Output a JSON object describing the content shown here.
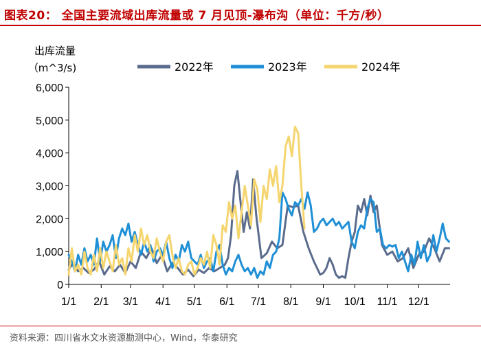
{
  "title": "图表20：  全国主要流域出库流量或 7 月见顶-瀑布沟（单位：千方/秒）",
  "source": "资料来源：四川省水文水资源勘测中心，Wind，华泰研究",
  "chart_data": {
    "type": "line",
    "ylabel_line1": "出库流量",
    "ylabel_line2": "（m^3/s)",
    "ylim": [
      0,
      6000
    ],
    "xlim": [
      1,
      365
    ],
    "y_ticks": [
      0,
      1000,
      2000,
      3000,
      4000,
      5000,
      6000
    ],
    "y_tick_labels": [
      "0",
      "1,000",
      "2,000",
      "3,000",
      "4,000",
      "5,000",
      "6,000"
    ],
    "x_ticks": [
      1,
      32,
      60,
      91,
      121,
      152,
      182,
      213,
      244,
      274,
      305,
      335
    ],
    "x_tick_labels": [
      "1/1",
      "2/1",
      "3/1",
      "4/1",
      "5/1",
      "6/1",
      "7/1",
      "8/1",
      "9/1",
      "10/1",
      "11/1",
      "12/1"
    ],
    "x_unit": "day of year",
    "legend_position": "top",
    "series": [
      {
        "name": "2022年",
        "color": "#5a6b8c",
        "x": [
          1,
          5,
          10,
          15,
          20,
          25,
          30,
          35,
          40,
          45,
          50,
          55,
          60,
          65,
          70,
          75,
          80,
          85,
          90,
          95,
          100,
          105,
          110,
          115,
          120,
          125,
          130,
          135,
          140,
          145,
          150,
          153,
          156,
          159,
          162,
          165,
          168,
          171,
          174,
          177,
          180,
          185,
          190,
          195,
          200,
          205,
          210,
          215,
          220,
          225,
          230,
          235,
          238,
          241,
          244,
          247,
          250,
          253,
          256,
          259,
          262,
          265,
          268,
          271,
          274,
          277,
          280,
          283,
          286,
          289,
          292,
          295,
          300,
          305,
          310,
          315,
          320,
          325,
          330,
          335,
          340,
          345,
          350,
          355,
          360,
          364
        ],
        "y": [
          450,
          650,
          400,
          500,
          350,
          450,
          700,
          300,
          550,
          400,
          600,
          350,
          700,
          500,
          1000,
          800,
          1100,
          650,
          900,
          400,
          650,
          500,
          300,
          450,
          250,
          450,
          350,
          500,
          400,
          500,
          600,
          800,
          1500,
          3000,
          3450,
          2500,
          1600,
          2200,
          1700,
          3200,
          2100,
          800,
          950,
          1300,
          1100,
          1200,
          2400,
          2350,
          2400,
          1600,
          1100,
          700,
          500,
          300,
          350,
          500,
          800,
          600,
          300,
          200,
          250,
          200,
          800,
          1300,
          1600,
          2400,
          2200,
          2600,
          2100,
          2700,
          2200,
          2400,
          1200,
          900,
          1000,
          700,
          800,
          1100,
          500,
          900,
          1000,
          1400,
          1100,
          700,
          1100,
          1100
        ]
      },
      {
        "name": "2023年",
        "color": "#1f8fd6",
        "x": [
          1,
          4,
          7,
          10,
          13,
          16,
          19,
          22,
          25,
          28,
          31,
          34,
          37,
          40,
          43,
          46,
          49,
          52,
          55,
          58,
          61,
          64,
          67,
          70,
          73,
          76,
          79,
          82,
          85,
          88,
          91,
          94,
          97,
          100,
          103,
          106,
          109,
          112,
          115,
          118,
          121,
          124,
          127,
          130,
          133,
          136,
          139,
          142,
          145,
          148,
          151,
          154,
          157,
          160,
          163,
          166,
          169,
          172,
          175,
          178,
          181,
          184,
          187,
          190,
          193,
          196,
          199,
          202,
          205,
          208,
          211,
          214,
          217,
          220,
          223,
          226,
          229,
          232,
          235,
          238,
          241,
          244,
          247,
          250,
          253,
          256,
          259,
          262,
          265,
          268,
          271,
          274,
          277,
          280,
          283,
          286,
          289,
          292,
          295,
          298,
          301,
          304,
          307,
          310,
          313,
          316,
          319,
          322,
          325,
          328,
          331,
          334,
          337,
          340,
          343,
          346,
          349,
          352,
          355,
          358,
          361,
          364
        ],
        "y": [
          900,
          700,
          400,
          900,
          600,
          1100,
          700,
          900,
          600,
          1400,
          700,
          1300,
          1000,
          1200,
          1500,
          800,
          1400,
          1700,
          1500,
          1850,
          1300,
          1600,
          1200,
          900,
          1300,
          1000,
          1200,
          700,
          1000,
          1100,
          900,
          1300,
          800,
          500,
          900,
          700,
          1200,
          1000,
          1300,
          800,
          700,
          600,
          900,
          500,
          700,
          800,
          400,
          1000,
          1200,
          600,
          300,
          500,
          400,
          700,
          900,
          600,
          400,
          500,
          300,
          500,
          200,
          400,
          300,
          700,
          500,
          900,
          1000,
          1400,
          2800,
          2600,
          2300,
          2100,
          2500,
          2400,
          2600,
          2300,
          2800,
          2400,
          1600,
          1700,
          1900,
          2000,
          1800,
          1900,
          2000,
          1800,
          1900,
          1700,
          1800,
          1900,
          1300,
          1100,
          1600,
          1800,
          1700,
          2300,
          2600,
          2500,
          1600,
          1700,
          1200,
          1100,
          1200,
          1150,
          1200,
          800,
          1000,
          700,
          400,
          900,
          600,
          1300,
          800,
          1200,
          700,
          900,
          1500,
          1000,
          1400,
          1850,
          1400,
          1300
        ]
      },
      {
        "name": "2024年",
        "color": "#f5d56e",
        "x": [
          1,
          4,
          7,
          10,
          13,
          16,
          19,
          22,
          25,
          28,
          31,
          34,
          37,
          40,
          43,
          46,
          49,
          52,
          55,
          58,
          61,
          64,
          67,
          70,
          73,
          76,
          79,
          82,
          85,
          88,
          91,
          94,
          97,
          100,
          103,
          106,
          109,
          112,
          115,
          118,
          121,
          124,
          127,
          130,
          133,
          136,
          139,
          142,
          145,
          148,
          151,
          154,
          157,
          160,
          163,
          166,
          169,
          172,
          175,
          178,
          181,
          184,
          187,
          190,
          193,
          196,
          199,
          202,
          205,
          208,
          211,
          214,
          217,
          220,
          223,
          226
        ],
        "y": [
          300,
          1100,
          400,
          600,
          300,
          1000,
          500,
          300,
          900,
          400,
          1100,
          500,
          1000,
          700,
          400,
          1200,
          600,
          800,
          300,
          1100,
          700,
          1500,
          1000,
          1700,
          1200,
          1500,
          1000,
          800,
          1400,
          1000,
          700,
          1300,
          1500,
          900,
          500,
          800,
          400,
          300,
          600,
          700,
          300,
          500,
          800,
          600,
          1000,
          500,
          1500,
          1200,
          600,
          1800,
          1600,
          2500,
          2000,
          2400,
          1400,
          2200,
          3000,
          2400,
          1800,
          3200,
          2900,
          1900,
          3000,
          2600,
          3500,
          3000,
          3600,
          2500,
          3000,
          4200,
          4500,
          3900,
          4800,
          4600,
          3000,
          1700
        ]
      }
    ]
  }
}
